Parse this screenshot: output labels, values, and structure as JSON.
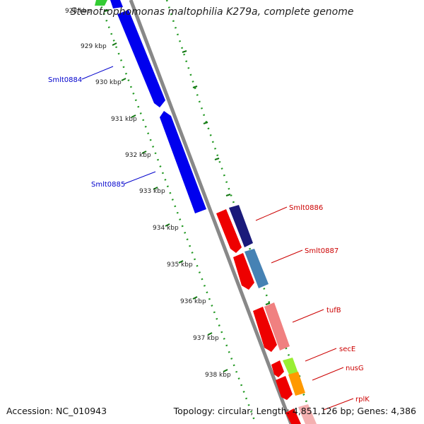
{
  "title": "Stenotrophomonas maltophilia K279a, complete genome",
  "accession": "Accession: NC_010943",
  "topology": "Topology: circular; Length: 4,851,126 bp; Genes: 4,386",
  "kbp_ticks": [
    "928 kbp",
    "929 kbp",
    "930 kbp",
    "931 kbp",
    "932 kbp",
    "933 kbp",
    "934 kbp",
    "935 kbp",
    "936 kbp",
    "937 kbp",
    "938 kbp"
  ],
  "genes": [
    {
      "name": "Smlt0884",
      "color": "#0000cc"
    },
    {
      "name": "Smlt0885",
      "color": "#0000cc"
    },
    {
      "name": "Smlt0886",
      "color": "#cc0000"
    },
    {
      "name": "Smlt0887",
      "color": "#cc0000"
    },
    {
      "name": "tufB",
      "color": "#cc0000"
    },
    {
      "name": "secE",
      "color": "#cc0000"
    },
    {
      "name": "nusG",
      "color": "#cc0000"
    },
    {
      "name": "rplK",
      "color": "#cc0000"
    }
  ],
  "colors": {
    "backbone": "#888888",
    "tick_dots": "#22aa22",
    "blue_gene": "#0000ee",
    "red_gene": "#ee0000",
    "navy_gene": "#1a1a7a",
    "steel_gene": "#4682b4",
    "pink_gene": "#f08080",
    "lime_gene": "#99ee33",
    "orange_gene": "#ff9900",
    "green_gene": "#33cc33"
  }
}
